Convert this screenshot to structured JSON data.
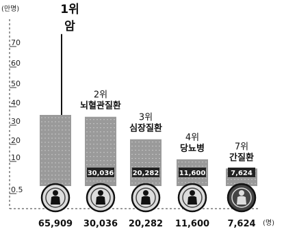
{
  "chart_data": {
    "type": "bar",
    "y_unit": "(만명)",
    "x_unit": "(명)",
    "yticks": [
      "0.5",
      "10",
      "20",
      "30",
      "40",
      "50",
      "60",
      "70"
    ],
    "ylim": [
      0,
      70
    ],
    "categories": [
      {
        "rank": "1위",
        "name": "암"
      },
      {
        "rank": "2위",
        "name": "뇌혈관질환"
      },
      {
        "rank": "3위",
        "name": "심장질환"
      },
      {
        "rank": "4위",
        "name": "당뇨병"
      },
      {
        "rank": "7위",
        "name": "간질환"
      }
    ],
    "values": [
      65909,
      30036,
      20282,
      11600,
      7624
    ],
    "value_labels": [
      "65,909",
      "30,036",
      "20,282",
      "11,600",
      "7,624"
    ],
    "bar_labels": [
      "",
      "30,036",
      "20,282",
      "11,600",
      "7,624"
    ]
  }
}
